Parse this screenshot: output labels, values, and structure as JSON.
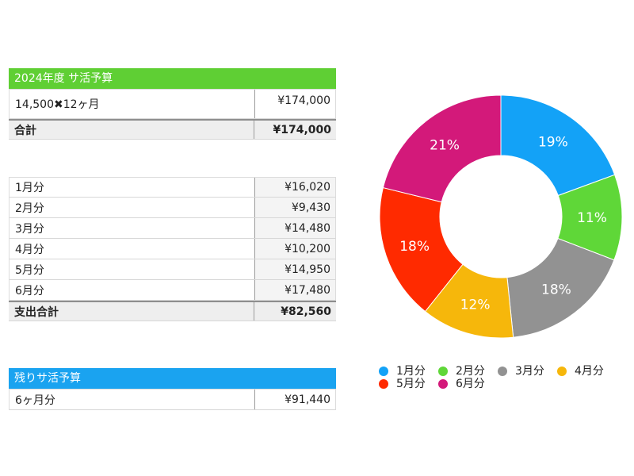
{
  "budget": {
    "title": "2024年度 サ活予算",
    "header_color": "#5fcf34",
    "rows": [
      {
        "label": "14,500✖︎12ヶ月",
        "value": "¥174,000"
      }
    ],
    "total": {
      "label": "合計",
      "value": "¥174,000"
    }
  },
  "expenses": {
    "rows": [
      {
        "label": "1月分",
        "value": "¥16,020"
      },
      {
        "label": "2月分",
        "value": "¥9,430"
      },
      {
        "label": "3月分",
        "value": "¥14,480"
      },
      {
        "label": "4月分",
        "value": "¥10,200"
      },
      {
        "label": "5月分",
        "value": "¥14,950"
      },
      {
        "label": "6月分",
        "value": "¥17,480"
      }
    ],
    "total": {
      "label": "支出合計",
      "value": "¥82,560"
    }
  },
  "remaining": {
    "title": "残りサ活予算",
    "header_color": "#1aa3f0",
    "rows": [
      {
        "label": "6ヶ月分",
        "value": "¥91,440"
      }
    ]
  },
  "chart_data": {
    "type": "pie",
    "donut": true,
    "categories": [
      "1月分",
      "2月分",
      "3月分",
      "4月分",
      "5月分",
      "6月分"
    ],
    "values": [
      16020,
      9430,
      14480,
      10200,
      14950,
      17480
    ],
    "labels": [
      "19%",
      "11%",
      "18%",
      "12%",
      "18%",
      "21%"
    ],
    "colors": [
      "#13a2f7",
      "#5fd738",
      "#929292",
      "#f6b70b",
      "#ff2a00",
      "#d3197a"
    ],
    "legend_position": "bottom"
  }
}
